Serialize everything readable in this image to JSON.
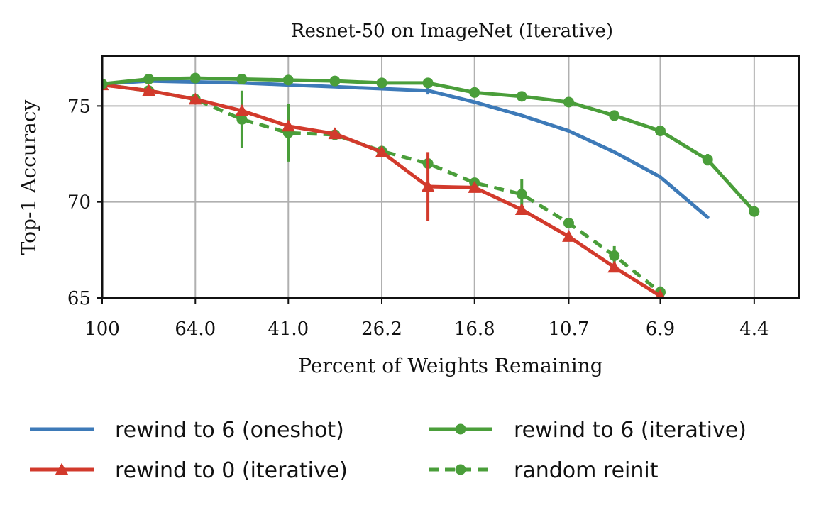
{
  "chart_data": {
    "type": "line",
    "title": "Resnet-50 on ImageNet (Iterative)",
    "xlabel": "Percent of Weights Remaining",
    "ylabel": "Top-1 Accuracy",
    "x_scale": "log",
    "x_reversed": true,
    "xlim": [
      100,
      3.55
    ],
    "ylim": [
      65,
      77.6
    ],
    "x_ticks": [
      100,
      64.0,
      41.0,
      26.2,
      16.8,
      10.7,
      6.9,
      4.4
    ],
    "x_tick_labels": [
      "100",
      "64.0",
      "41.0",
      "26.2",
      "16.8",
      "10.7",
      "6.9",
      "4.4"
    ],
    "y_ticks": [
      65,
      70,
      75
    ],
    "y_tick_labels": [
      "65",
      "70",
      "75"
    ],
    "grid": true,
    "legend_position": "bottom",
    "colors": {
      "blue": "#3d7ab8",
      "green": "#4a9e3a",
      "red": "#d23a2c"
    },
    "series": [
      {
        "name": "rewind to 6 (oneshot)",
        "color": "#3d7ab8",
        "line_style": "solid",
        "marker": "none",
        "x": [
          100,
          80,
          64.0,
          51.2,
          41.0,
          32.8,
          26.2,
          21.0,
          16.8,
          13.4,
          10.7,
          8.6,
          6.9,
          5.5
        ],
        "y": [
          76.15,
          76.3,
          76.25,
          76.2,
          76.1,
          76.0,
          75.9,
          75.8,
          75.2,
          74.5,
          73.7,
          72.6,
          71.3,
          69.2
        ],
        "err": [
          0,
          0,
          0,
          0,
          0,
          0,
          0,
          0.2,
          0,
          0,
          0,
          0,
          0,
          0
        ]
      },
      {
        "name": "rewind to 6 (iterative)",
        "color": "#4a9e3a",
        "line_style": "solid",
        "marker": "circle",
        "x": [
          100,
          80,
          64.0,
          51.2,
          41.0,
          32.8,
          26.2,
          21.0,
          16.8,
          13.4,
          10.7,
          8.6,
          6.9,
          5.5,
          4.4
        ],
        "y": [
          76.15,
          76.4,
          76.45,
          76.4,
          76.35,
          76.3,
          76.2,
          76.2,
          75.7,
          75.5,
          75.2,
          74.5,
          73.7,
          72.2,
          69.5
        ],
        "err": [
          0,
          0,
          0,
          0,
          0,
          0,
          0,
          0.2,
          0,
          0,
          0,
          0,
          0,
          0.3,
          0.2
        ]
      },
      {
        "name": "rewind to 0 (iterative)",
        "color": "#d23a2c",
        "line_style": "solid",
        "marker": "triangle",
        "x": [
          100,
          80,
          64.0,
          51.2,
          41.0,
          32.8,
          26.2,
          21.0,
          16.8,
          13.4,
          10.7,
          8.6,
          6.9
        ],
        "y": [
          76.1,
          75.8,
          75.35,
          74.75,
          73.95,
          73.55,
          72.6,
          70.8,
          70.75,
          69.6,
          68.2,
          66.6,
          65.1
        ],
        "err": [
          0,
          0,
          0,
          0,
          0,
          0,
          0,
          1.8,
          0,
          0,
          0,
          0,
          0
        ]
      },
      {
        "name": "random reinit",
        "color": "#4a9e3a",
        "line_style": "dashed",
        "marker": "circle",
        "x": [
          100,
          80,
          64.0,
          51.2,
          41.0,
          32.8,
          26.2,
          21.0,
          16.8,
          13.4,
          10.7,
          8.6,
          6.9
        ],
        "y": [
          76.1,
          75.8,
          75.35,
          74.3,
          73.6,
          73.5,
          72.65,
          72.0,
          71.0,
          70.4,
          68.9,
          67.2,
          65.3
        ],
        "err": [
          0,
          0,
          0,
          1.5,
          1.5,
          0,
          0,
          0,
          0,
          0.8,
          0,
          0.5,
          0.3
        ]
      }
    ]
  }
}
